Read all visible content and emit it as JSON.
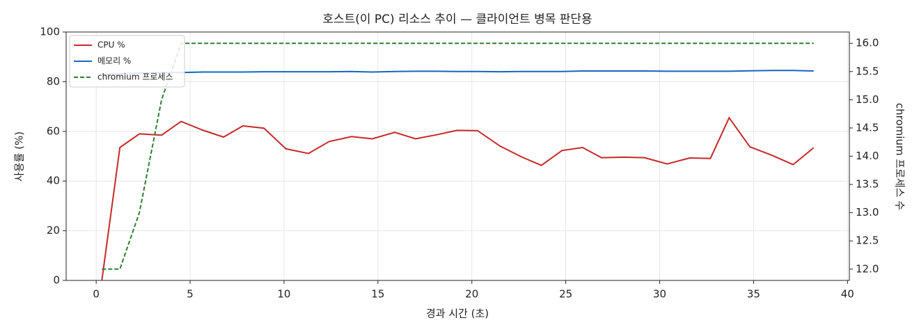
{
  "chart_data": {
    "type": "line",
    "title": "호스트(이 PC) 리소스 추이 — 클라이언트 병목 판단용",
    "x_label": "경과 시간 (초)",
    "y_label": "사용률 (%)",
    "y2_label": "chromium 프로세스 수",
    "x": [
      0.3,
      1.26,
      2.3,
      3.48,
      4.52,
      5.67,
      6.78,
      7.81,
      8.93,
      10.1,
      11.3,
      12.4,
      13.6,
      14.7,
      15.9,
      17.0,
      18.1,
      19.2,
      20.3,
      21.5,
      22.6,
      23.7,
      24.8,
      25.9,
      26.9,
      28.1,
      29.2,
      30.4,
      31.6,
      32.7,
      33.7,
      34.8,
      36.0,
      37.1,
      38.2
    ],
    "series": [
      {
        "name": "CPU %",
        "color": "#c62828",
        "style": "solid",
        "values": [
          0,
          53.5,
          59,
          58.5,
          64,
          60.5,
          57.7,
          62.2,
          61.3,
          53,
          51.1,
          55.9,
          57.9,
          57,
          59.6,
          57,
          58.6,
          60.4,
          60.3,
          54.1,
          49.9,
          46.3,
          52.3,
          53.5,
          49.4,
          49.6,
          49.4,
          46.9,
          49.3,
          49.1,
          65.5,
          53.8,
          50.3,
          46.6,
          53.4
        ]
      },
      {
        "name": "메모리 %",
        "color": "#1565c0",
        "style": "solid",
        "values": [
          83.0,
          83.2,
          83.5,
          83.6,
          83.7,
          83.9,
          83.9,
          83.9,
          84.0,
          84.0,
          84.0,
          84.0,
          84.1,
          83.9,
          84.1,
          84.2,
          84.2,
          84.1,
          84.1,
          84.0,
          84.1,
          84.1,
          84.1,
          84.3,
          84.3,
          84.3,
          84.3,
          84.2,
          84.2,
          84.2,
          84.2,
          84.4,
          84.5,
          84.5,
          84.3
        ]
      },
      {
        "name": "chromium 프로세스",
        "color": "#2e7d32",
        "style": "dashed",
        "axis": "y2",
        "values": [
          12,
          12,
          13,
          15,
          16,
          16,
          16,
          16,
          16,
          16,
          16,
          16,
          16,
          16,
          16,
          16,
          16,
          16,
          16,
          16,
          16,
          16,
          16,
          16,
          16,
          16,
          16,
          16,
          16,
          16,
          16,
          16,
          16,
          16,
          16
        ]
      }
    ],
    "xlim": [
      -1.6,
      40.1
    ],
    "xticks": [
      0,
      5,
      10,
      15,
      20,
      25,
      30,
      35,
      40
    ],
    "ylim": [
      0,
      100
    ],
    "yticks": [
      0,
      20,
      40,
      60,
      80,
      100
    ],
    "y2lim": [
      11.8,
      16.2
    ],
    "y2ticks": [
      {
        "value": 12,
        "label": "12.0"
      },
      {
        "value": 12.5,
        "label": "12.5"
      },
      {
        "value": 13,
        "label": "13.0"
      },
      {
        "value": 13.5,
        "label": "13.5"
      },
      {
        "value": 14,
        "label": "14.0"
      },
      {
        "value": 14.5,
        "label": "14.5"
      },
      {
        "value": 15,
        "label": "15.0"
      },
      {
        "value": 15.5,
        "label": "15.5"
      },
      {
        "value": 16,
        "label": "16.0"
      }
    ],
    "grid": true,
    "legend": "upper-left"
  }
}
